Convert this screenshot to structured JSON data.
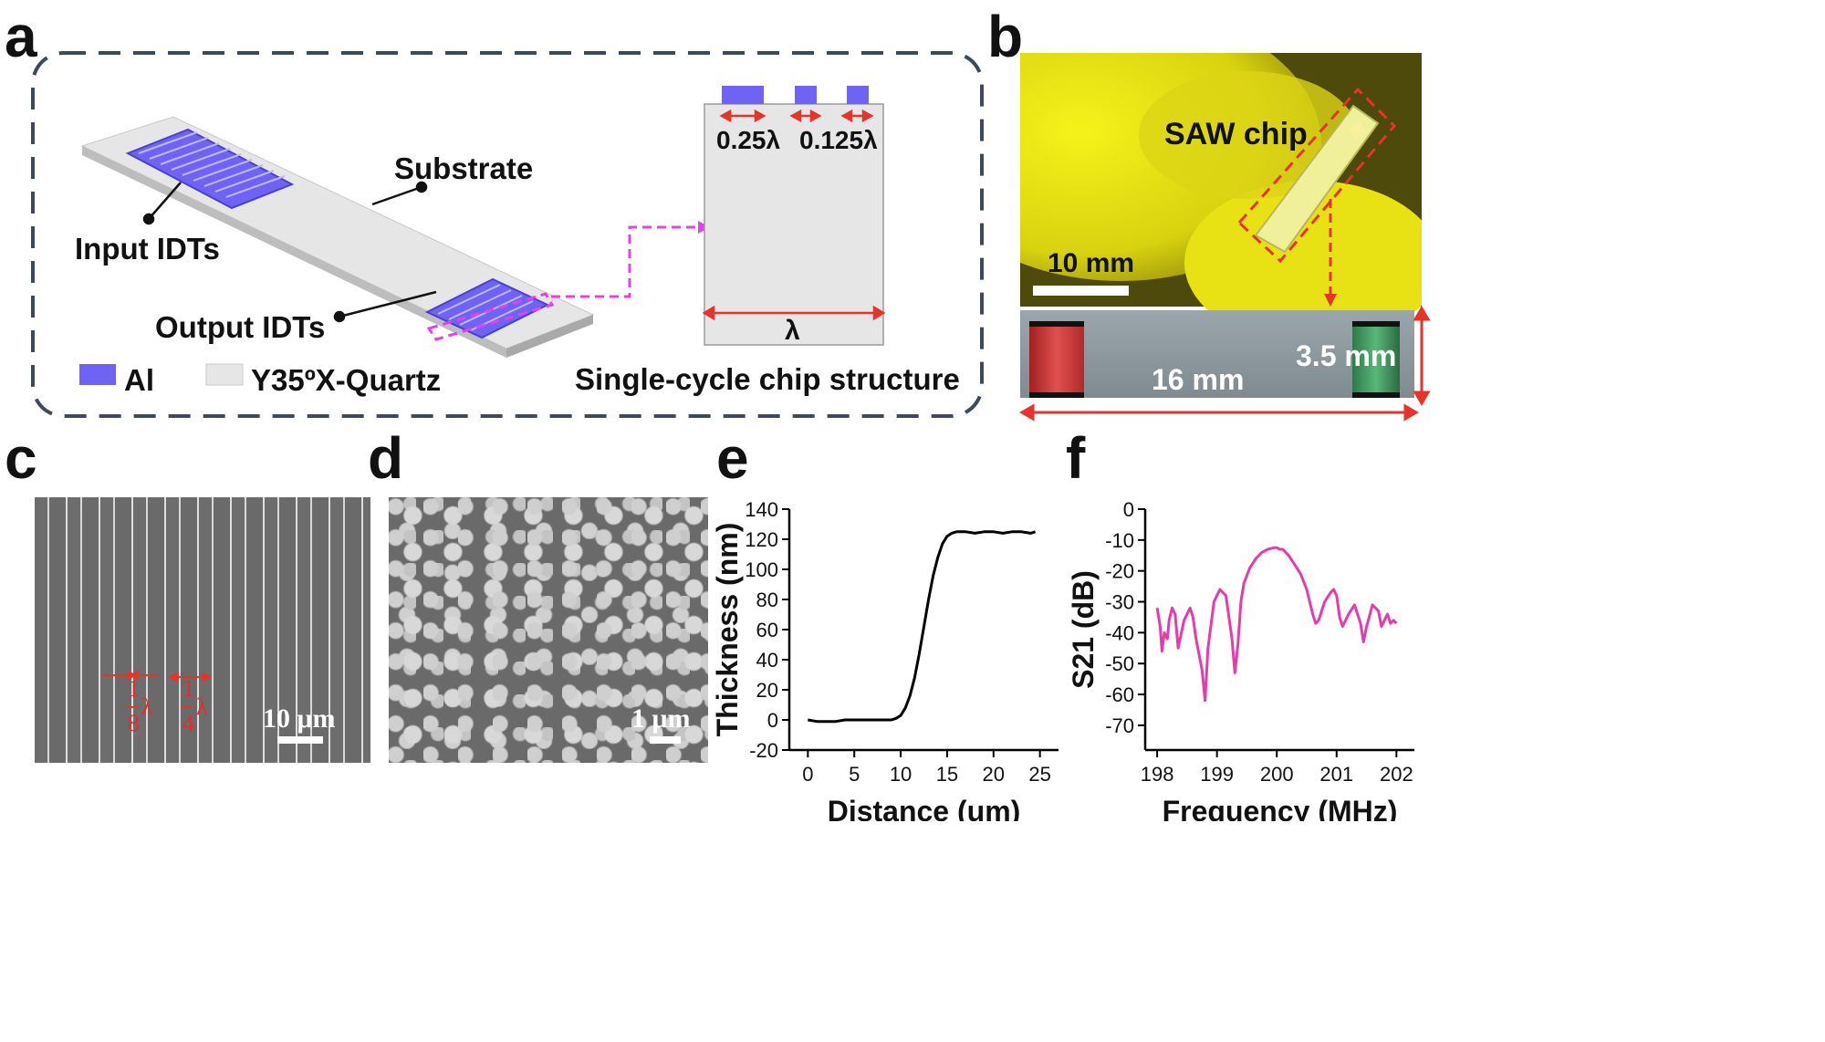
{
  "panels": {
    "a": "a",
    "b": "b",
    "c": "c",
    "d": "d",
    "e": "e",
    "f": "f"
  },
  "panel_a": {
    "substrate": "Substrate",
    "input_idts": "Input  IDTs",
    "output_idts": "Output IDTs",
    "legend_al": "Al",
    "legend_quartz": "Y35ºX-Quartz",
    "dim_quarter": "0.25λ",
    "dim_eighth": "0.125λ",
    "dim_lambda": "λ",
    "structure_caption": "Single-cycle chip structure",
    "colors": {
      "al": "#6f63f5",
      "quartz": "#e6e6e6",
      "accent": "#e8332a",
      "magenta": "#e541e8",
      "frame": "#3c4a5a"
    }
  },
  "panel_b": {
    "chip_label": "SAW chip",
    "scale_10mm": "10 mm",
    "width_label": "3.5 mm",
    "length_label": "16 mm"
  },
  "panel_c": {
    "scale": "10 μm",
    "frac_num": "1",
    "frac_eighth_den": "8",
    "frac_quarter_den": "4",
    "lambda": "λ"
  },
  "panel_d": {
    "scale": "1 μm"
  },
  "chart_data": [
    {
      "type": "line",
      "panel": "e",
      "xlabel": "Distance (um)",
      "ylabel": "Thickness (nm)",
      "xlim": [
        -2,
        27
      ],
      "ylim": [
        -20,
        140
      ],
      "xticks": [
        0,
        5,
        10,
        15,
        20,
        25
      ],
      "yticks": [
        -20,
        0,
        20,
        40,
        60,
        80,
        100,
        120,
        140
      ],
      "series": [
        {
          "name": "thickness",
          "color": "#000000",
          "x": [
            0,
            1,
            2,
            3,
            4,
            5,
            6,
            7,
            8,
            9,
            9.5,
            10,
            10.5,
            11,
            11.5,
            12,
            12.5,
            13,
            13.5,
            14,
            14.5,
            15,
            15.5,
            16,
            17,
            18,
            19,
            20,
            21,
            22,
            23,
            24,
            24.5
          ],
          "y": [
            0,
            -1,
            -1,
            -1,
            0,
            0,
            0,
            0,
            0,
            0,
            1,
            3,
            8,
            16,
            28,
            44,
            62,
            80,
            96,
            108,
            117,
            122,
            124,
            125,
            125,
            124,
            125,
            125,
            124,
            125,
            125,
            124,
            125
          ]
        }
      ]
    },
    {
      "type": "line",
      "panel": "f",
      "xlabel": "Frequency (MHz)",
      "ylabel": "S21 (dB)",
      "xlim": [
        197.8,
        202.3
      ],
      "ylim": [
        -78,
        0
      ],
      "xticks": [
        198,
        199,
        200,
        201,
        202
      ],
      "yticks": [
        0,
        -10,
        -20,
        -30,
        -40,
        -50,
        -60,
        -70
      ],
      "series": [
        {
          "name": "S21",
          "color": "#e83aa8",
          "x": [
            198.0,
            198.05,
            198.08,
            198.12,
            198.17,
            198.2,
            198.25,
            198.3,
            198.35,
            198.45,
            198.55,
            198.6,
            198.65,
            198.75,
            198.8,
            198.85,
            198.95,
            199.05,
            199.15,
            199.25,
            199.3,
            199.35,
            199.4,
            199.45,
            199.55,
            199.65,
            199.75,
            199.85,
            199.95,
            200.0,
            200.05,
            200.1,
            200.2,
            200.3,
            200.4,
            200.5,
            200.6,
            200.65,
            200.7,
            200.8,
            200.9,
            200.95,
            201.0,
            201.05,
            201.1,
            201.2,
            201.3,
            201.4,
            201.45,
            201.5,
            201.6,
            201.7,
            201.75,
            201.8,
            201.85,
            201.9,
            201.95,
            202.0
          ],
          "y": [
            -32,
            -38,
            -46,
            -40,
            -42,
            -36,
            -32,
            -34,
            -45,
            -36,
            -32,
            -35,
            -42,
            -52,
            -62,
            -45,
            -30,
            -26,
            -28,
            -42,
            -53,
            -44,
            -30,
            -24,
            -19,
            -16,
            -14,
            -13,
            -12.5,
            -12.5,
            -13,
            -13,
            -15,
            -18,
            -21,
            -26,
            -34,
            -37,
            -36,
            -30,
            -27,
            -26,
            -28,
            -35,
            -38,
            -34,
            -31,
            -37,
            -43,
            -38,
            -31,
            -33,
            -38,
            -36,
            -34,
            -37,
            -36,
            -37
          ]
        }
      ]
    }
  ]
}
